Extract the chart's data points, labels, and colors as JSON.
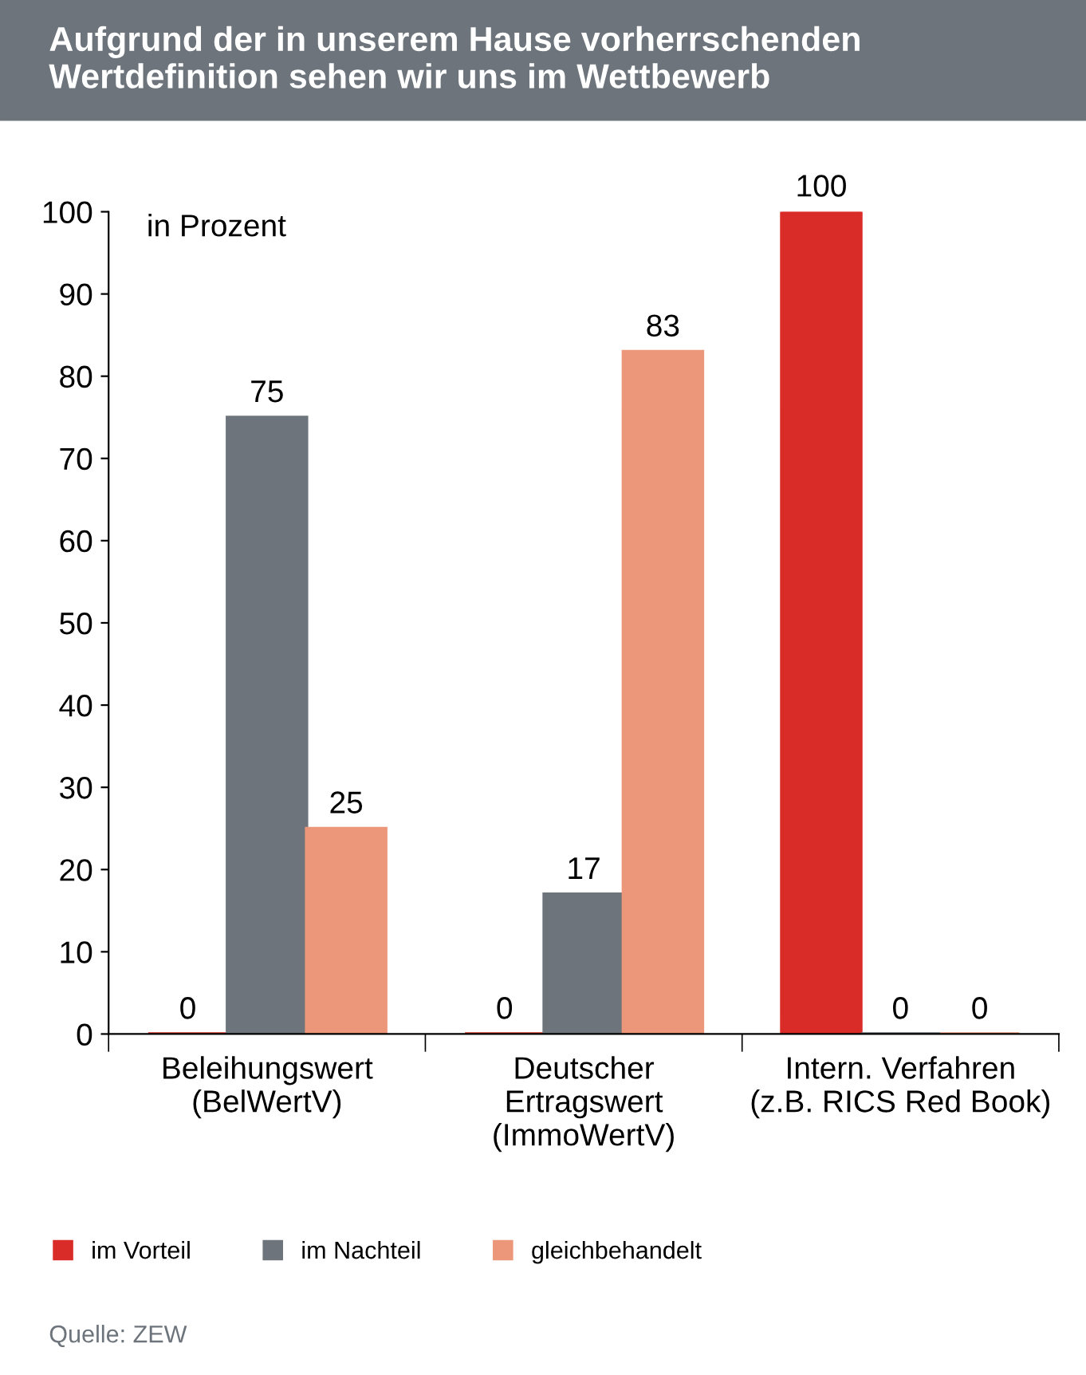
{
  "chart_data": {
    "type": "bar",
    "title": "Aufgrund der in unserem Hause vorherrschenden\nWertdefinition sehen wir uns im Wettbewerb",
    "ylabel": "in Prozent",
    "categories": [
      "Beleihungswert\n(BelWertV)",
      "Deutscher\nErtragswert\n(ImmoWertV)",
      "Intern. Verfahren\n(z.B. RICS Red Book)"
    ],
    "series": [
      {
        "name": "im Vorteil",
        "color": "#d92b27",
        "values": [
          0,
          0,
          100
        ]
      },
      {
        "name": "im Nachteil",
        "color": "#6d747b",
        "values": [
          75,
          17,
          0
        ]
      },
      {
        "name": "gleichbehandelt",
        "color": "#ec967a",
        "values": [
          25,
          83,
          0
        ]
      }
    ],
    "value_labels": [
      [
        "0",
        "0",
        "100"
      ],
      [
        "75",
        "17",
        "0"
      ],
      [
        "25",
        "83",
        "0"
      ]
    ],
    "ylim": [
      0,
      100
    ],
    "yticks": [
      0,
      10,
      20,
      30,
      40,
      50,
      60,
      70,
      80,
      90,
      100
    ],
    "grid": false,
    "legend": "bottom",
    "annotations": [
      "Quelle: ZEW"
    ]
  }
}
